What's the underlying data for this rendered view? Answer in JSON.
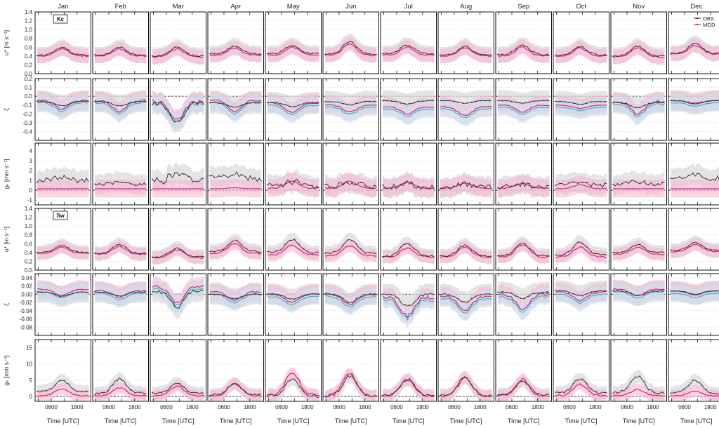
{
  "figure": {
    "months": [
      "Jan",
      "Feb",
      "Mar",
      "Apr",
      "May",
      "Jun",
      "Jul",
      "Aug",
      "Sep",
      "Oct",
      "Nov",
      "Dec"
    ],
    "x_label": "Time [UTC]",
    "x_tick_labels": [
      "0600",
      "1800"
    ],
    "site_labels": [
      "Kc",
      "Sw"
    ],
    "legend": [
      {
        "label": "OBS",
        "color": "#333333"
      },
      {
        "label": "MOD",
        "color": "#e8197a"
      }
    ]
  },
  "colors": {
    "obs": "#333333",
    "mod": "#e8197a",
    "mod2": "#20b8c8",
    "obs_band": "#d9d9d9",
    "mod_band": "#f5b3d2",
    "mod2_band": "#bfeaf1"
  },
  "chart_data": {
    "type": "line",
    "x_hours": [
      0,
      2,
      4,
      6,
      8,
      10,
      12,
      14,
      16,
      18,
      20,
      22
    ],
    "rows": [
      {
        "ylabel": "u* [m s⁻¹]",
        "ylim": [
          0,
          1.4
        ],
        "yticks": [
          "0.0",
          "0.2",
          "0.4",
          "0.6",
          "0.8",
          "1.0",
          "1.2",
          "1.4"
        ],
        "ytick_values": [
          0,
          0.2,
          0.4,
          0.6,
          0.8,
          1.0,
          1.2,
          1.4
        ],
        "zero_line": false,
        "shape": "bump",
        "base_obs": [
          0.42,
          0.42,
          0.4,
          0.45,
          0.45,
          0.45,
          0.45,
          0.42,
          0.43,
          0.42,
          0.4,
          0.46
        ],
        "amp_obs": [
          0.18,
          0.18,
          0.2,
          0.18,
          0.2,
          0.28,
          0.2,
          0.2,
          0.22,
          0.2,
          0.22,
          0.22
        ],
        "base_mod": [
          0.4,
          0.4,
          0.38,
          0.42,
          0.42,
          0.42,
          0.42,
          0.4,
          0.4,
          0.4,
          0.38,
          0.44
        ],
        "amp_mod": [
          0.16,
          0.16,
          0.18,
          0.16,
          0.18,
          0.26,
          0.18,
          0.18,
          0.2,
          0.18,
          0.2,
          0.2
        ],
        "band": 0.18,
        "has_mod2": false
      },
      {
        "ylabel": "ζ",
        "ylim": [
          -0.5,
          0.2
        ],
        "yticks": [
          "0.2",
          "0.1",
          "0.0",
          "-0.1",
          "-0.2",
          "-0.3",
          "-0.4"
        ],
        "ytick_values": [
          0.2,
          0.1,
          0.0,
          -0.1,
          -0.2,
          -0.3,
          -0.4
        ],
        "zero_line": true,
        "shape": "dip",
        "base_obs": [
          -0.06,
          -0.06,
          -0.08,
          -0.07,
          -0.07,
          -0.06,
          -0.05,
          -0.05,
          -0.05,
          -0.06,
          -0.07,
          -0.05
        ],
        "amp_obs": [
          -0.05,
          -0.05,
          -0.22,
          -0.06,
          -0.05,
          -0.04,
          -0.04,
          -0.03,
          -0.03,
          -0.03,
          -0.06,
          -0.03
        ],
        "base_mod": [
          -0.05,
          -0.05,
          -0.06,
          -0.05,
          -0.08,
          -0.1,
          -0.12,
          -0.12,
          -0.1,
          -0.1,
          -0.06,
          -0.05
        ],
        "amp_mod": [
          -0.1,
          -0.12,
          -0.22,
          -0.12,
          -0.1,
          -0.08,
          -0.08,
          -0.1,
          -0.08,
          -0.04,
          -0.14,
          -0.04
        ],
        "band": 0.12,
        "has_mod2": true,
        "mod2_offset": -0.05
      },
      {
        "ylabel": "gₕ [mm s⁻¹]",
        "ylim": [
          -1.5,
          4.8
        ],
        "yticks": [
          "4",
          "3",
          "2",
          "1",
          "0",
          "-1"
        ],
        "ytick_values": [
          4,
          3,
          2,
          1,
          0,
          -1
        ],
        "zero_line": true,
        "shape": "noisy",
        "base_obs": [
          1.0,
          0.6,
          1.0,
          1.2,
          0.4,
          0.4,
          0.3,
          0.3,
          0.3,
          0.5,
          0.6,
          1.1
        ],
        "amp_obs": [
          0.5,
          0.3,
          0.9,
          0.6,
          0.7,
          0.6,
          0.6,
          0.5,
          0.5,
          0.5,
          0.4,
          0.7
        ],
        "base_mod": [
          0.15,
          0.15,
          0.15,
          0.15,
          0.2,
          0.2,
          0.2,
          0.2,
          0.2,
          0.15,
          0.15,
          0.15
        ],
        "amp_mod": [
          0.0,
          0.0,
          0.0,
          0.1,
          0.7,
          0.7,
          0.6,
          0.5,
          0.5,
          0.4,
          0.0,
          0.0
        ],
        "band": 1.0,
        "has_mod2": false
      },
      {
        "ylabel": "u* [m s⁻¹]",
        "ylim": [
          0,
          1.4
        ],
        "yticks": [
          "0.0",
          "0.2",
          "0.4",
          "0.6",
          "0.8",
          "1.0",
          "1.2",
          "1.4"
        ],
        "ytick_values": [
          0,
          0.2,
          0.4,
          0.6,
          0.8,
          1.0,
          1.2,
          1.4
        ],
        "zero_line": false,
        "shape": "bump",
        "base_obs": [
          0.4,
          0.38,
          0.3,
          0.42,
          0.4,
          0.38,
          0.32,
          0.32,
          0.32,
          0.35,
          0.4,
          0.45
        ],
        "amp_obs": [
          0.16,
          0.2,
          0.2,
          0.25,
          0.3,
          0.32,
          0.3,
          0.25,
          0.3,
          0.28,
          0.18,
          0.18
        ],
        "base_mod": [
          0.38,
          0.36,
          0.28,
          0.38,
          0.35,
          0.33,
          0.3,
          0.3,
          0.3,
          0.3,
          0.36,
          0.42
        ],
        "amp_mod": [
          0.14,
          0.18,
          0.18,
          0.22,
          0.22,
          0.22,
          0.2,
          0.22,
          0.28,
          0.22,
          0.16,
          0.16
        ],
        "band": 0.16,
        "has_mod2": false
      },
      {
        "ylabel": "ζ",
        "ylim": [
          -0.1,
          0.05
        ],
        "yticks": [
          "0.04",
          "0.02",
          "0.00",
          "-0.02",
          "-0.04",
          "-0.06",
          "-0.08"
        ],
        "ytick_values": [
          0.04,
          0.02,
          0.0,
          -0.02,
          -0.04,
          -0.06,
          -0.08
        ],
        "zero_line": true,
        "shape": "dip",
        "base_obs": [
          0.005,
          0.005,
          0.008,
          0.0,
          0.0,
          0.0,
          0.0,
          0.0,
          0.005,
          0.008,
          0.008,
          0.008
        ],
        "amp_obs": [
          -0.01,
          -0.01,
          -0.04,
          -0.012,
          -0.012,
          -0.02,
          -0.03,
          -0.02,
          -0.015,
          -0.012,
          -0.012,
          -0.008
        ],
        "base_mod": [
          0.012,
          0.008,
          0.018,
          0.005,
          0.0,
          0.0,
          -0.008,
          -0.005,
          0.0,
          0.005,
          0.012,
          0.008
        ],
        "amp_mod": [
          -0.015,
          -0.015,
          -0.04,
          -0.02,
          -0.02,
          -0.025,
          -0.045,
          -0.035,
          -0.035,
          -0.02,
          -0.015,
          -0.01
        ],
        "band": 0.025,
        "has_mod2": true,
        "mod2_offset": -0.012
      },
      {
        "ylabel": "gₕ [mm s⁻¹]",
        "ylim": [
          -1.5,
          17.5
        ],
        "yticks": [
          "15",
          "10",
          "5",
          "0"
        ],
        "ytick_values": [
          15,
          10,
          5,
          0
        ],
        "zero_line": true,
        "shape": "bump",
        "base_obs": [
          1.5,
          1.0,
          1.0,
          0.5,
          0.3,
          0.3,
          0.3,
          0.3,
          0.3,
          1.0,
          1.2,
          1.0
        ],
        "amp_obs": [
          3.5,
          4.5,
          3.0,
          3.5,
          5.0,
          6.0,
          5.0,
          5.5,
          4.5,
          4.5,
          5.0,
          4.0
        ],
        "base_mod": [
          0.2,
          0.2,
          0.2,
          0.2,
          0.2,
          0.2,
          0.2,
          0.2,
          0.2,
          0.2,
          0.2,
          0.2
        ],
        "amp_mod": [
          2.2,
          2.5,
          3.0,
          4.0,
          7.5,
          7.0,
          5.0,
          6.0,
          5.0,
          3.5,
          2.0,
          1.5
        ],
        "band": 2.0,
        "has_mod2": false
      }
    ]
  }
}
